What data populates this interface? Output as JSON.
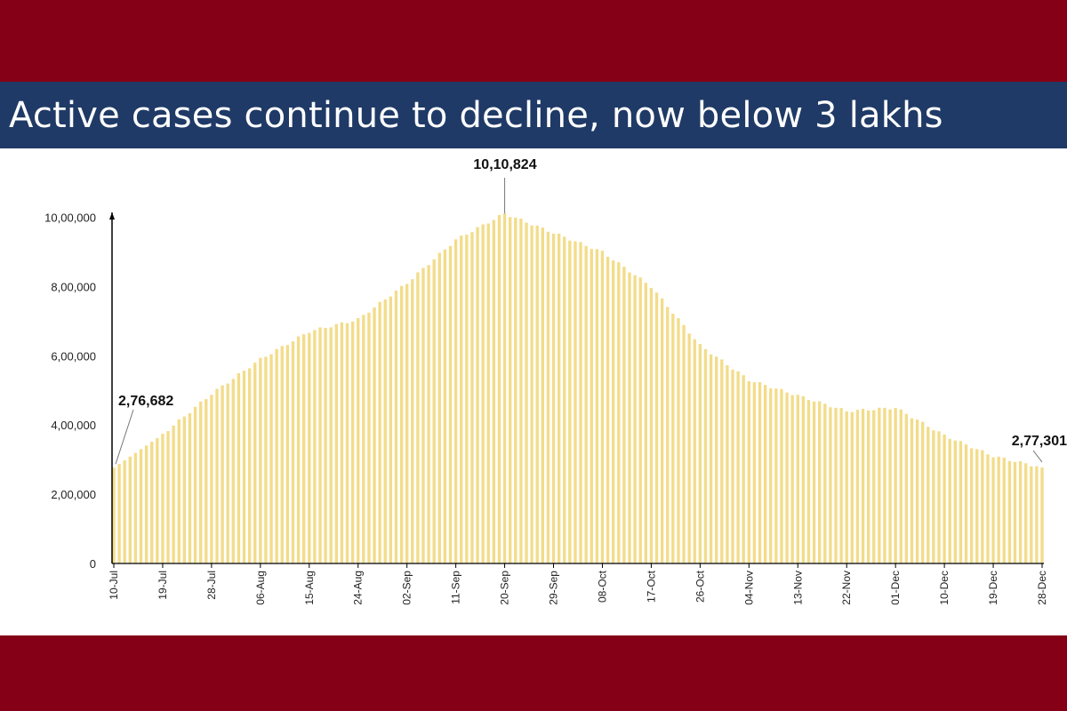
{
  "header": {
    "title": "Active cases continue to decline, now below 3 lakhs"
  },
  "colors": {
    "frame": "#850016",
    "title_bar": "#1f3a66",
    "bar": "#f3dc8a",
    "axis": "#000000"
  },
  "chart_data": {
    "type": "bar",
    "title": "",
    "xlabel": "",
    "ylabel": "",
    "ylim": [
      0,
      1050000
    ],
    "y_ticks": [
      {
        "value": 0,
        "label": "0"
      },
      {
        "value": 200000,
        "label": "2,00,000"
      },
      {
        "value": 400000,
        "label": "4,00,000"
      },
      {
        "value": 600000,
        "label": "6,00,000"
      },
      {
        "value": 800000,
        "label": "8,00,000"
      },
      {
        "value": 1000000,
        "label": "10,00,000"
      }
    ],
    "x_ticks": [
      "10-Jul",
      "19-Jul",
      "28-Jul",
      "06-Aug",
      "15-Aug",
      "24-Aug",
      "02-Sep",
      "11-Sep",
      "20-Sep",
      "29-Sep",
      "08-Oct",
      "17-Oct",
      "26-Oct",
      "04-Nov",
      "13-Nov",
      "22-Nov",
      "01-Dec",
      "10-Dec",
      "19-Dec",
      "28-Dec"
    ],
    "grid": false,
    "anchors": [
      {
        "date": "10-Jul",
        "value": 276682
      },
      {
        "date": "19-Jul",
        "value": 373000
      },
      {
        "date": "28-Jul",
        "value": 490000
      },
      {
        "date": "06-Aug",
        "value": 590000
      },
      {
        "date": "15-Aug",
        "value": 670000
      },
      {
        "date": "24-Aug",
        "value": 705000
      },
      {
        "date": "02-Sep",
        "value": 810000
      },
      {
        "date": "11-Sep",
        "value": 935000
      },
      {
        "date": "20-Sep",
        "value": 1010824
      },
      {
        "date": "29-Sep",
        "value": 955000
      },
      {
        "date": "08-Oct",
        "value": 900000
      },
      {
        "date": "17-Oct",
        "value": 800000
      },
      {
        "date": "26-Oct",
        "value": 630000
      },
      {
        "date": "04-Nov",
        "value": 530000
      },
      {
        "date": "13-Nov",
        "value": 485000
      },
      {
        "date": "22-Nov",
        "value": 440000
      },
      {
        "date": "01-Dec",
        "value": 450000
      },
      {
        "date": "10-Dec",
        "value": 370000
      },
      {
        "date": "19-Dec",
        "value": 310000
      },
      {
        "date": "28-Dec",
        "value": 277301
      }
    ],
    "annotations": [
      {
        "date": "10-Jul",
        "value": 276682,
        "label": "2,76,682"
      },
      {
        "date": "20-Sep",
        "value": 1010824,
        "label": "10,10,824"
      },
      {
        "date": "28-Dec",
        "value": 277301,
        "label": "2,77,301"
      }
    ]
  }
}
